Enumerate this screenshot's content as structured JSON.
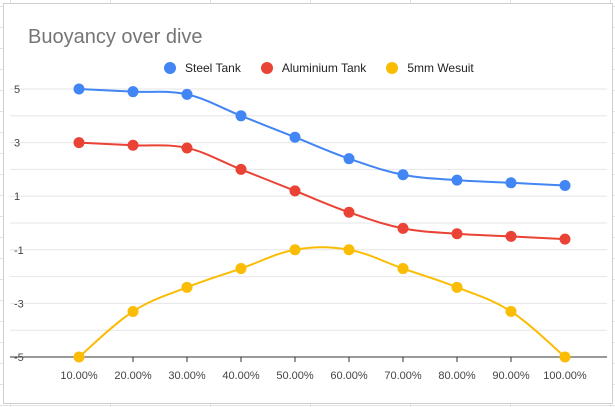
{
  "chart_data": {
    "type": "line",
    "title": "Buoyancy over dive",
    "xlabel": "",
    "ylabel": "",
    "categories": [
      "10.00%",
      "20.00%",
      "30.00%",
      "40.00%",
      "50.00%",
      "60.00%",
      "70.00%",
      "80.00%",
      "90.00%",
      "100.00%"
    ],
    "ylim": [
      -5,
      5
    ],
    "yticks": [
      "5",
      "3",
      "1",
      "-1",
      "-3",
      "-5"
    ],
    "grid": true,
    "legend": "top",
    "series": [
      {
        "name": "Steel Tank",
        "color": "#4285F4",
        "values": [
          5,
          4.9,
          4.8,
          4,
          3.2,
          2.4,
          1.8,
          1.6,
          1.5,
          1.4
        ]
      },
      {
        "name": "Aluminium Tank",
        "color": "#EA4335",
        "values": [
          3,
          2.9,
          2.8,
          2,
          1.2,
          0.4,
          -0.2,
          -0.4,
          -0.5,
          -0.6
        ]
      },
      {
        "name": "5mm Wesuit",
        "color": "#FBBC04",
        "values": [
          -5,
          -3.3,
          -2.4,
          -1.7,
          -1,
          -1,
          -1.7,
          -2.4,
          -3.3,
          -5
        ]
      }
    ]
  }
}
